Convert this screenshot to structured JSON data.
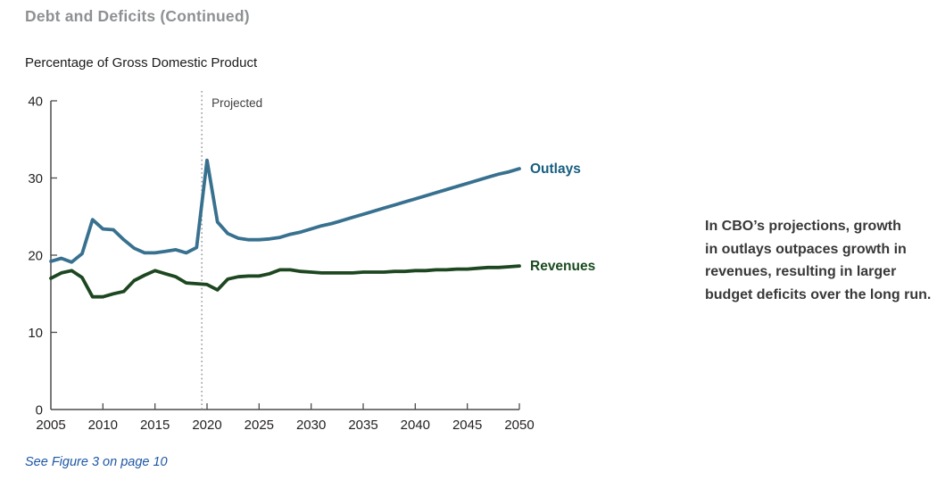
{
  "header": {
    "title": "Debt and Deficits (Continued)"
  },
  "chart": {
    "subtitle": "Percentage of Gross Domestic Product",
    "projected_label": "Projected"
  },
  "chart_data": {
    "type": "line",
    "title": "Debt and Deficits (Continued)",
    "ylabel": "Percentage of Gross Domestic Product",
    "xlabel": "",
    "ylim": [
      0,
      40
    ],
    "xlim": [
      2005,
      2050
    ],
    "y_ticks": [
      0,
      10,
      20,
      30,
      40
    ],
    "x_ticks": [
      2005,
      2010,
      2015,
      2020,
      2025,
      2030,
      2035,
      2040,
      2045,
      2050
    ],
    "grid": false,
    "legend_position": "end-of-line-labels",
    "projected_divider_x": 2019.5,
    "years": [
      2005,
      2006,
      2007,
      2008,
      2009,
      2010,
      2011,
      2012,
      2013,
      2014,
      2015,
      2016,
      2017,
      2018,
      2019,
      2020,
      2021,
      2022,
      2023,
      2024,
      2025,
      2026,
      2027,
      2028,
      2029,
      2030,
      2031,
      2032,
      2033,
      2034,
      2035,
      2036,
      2037,
      2038,
      2039,
      2040,
      2041,
      2042,
      2043,
      2044,
      2045,
      2046,
      2047,
      2048,
      2049,
      2050
    ],
    "series": [
      {
        "name": "Outlays",
        "color": "#38718F",
        "label_color": "#165E80",
        "values": [
          19.2,
          19.6,
          19.1,
          20.2,
          24.6,
          23.4,
          23.3,
          22.0,
          20.9,
          20.3,
          20.3,
          20.5,
          20.7,
          20.3,
          21.0,
          32.3,
          24.3,
          22.8,
          22.2,
          22.0,
          22.0,
          22.1,
          22.3,
          22.7,
          23.0,
          23.4,
          23.8,
          24.1,
          24.5,
          24.9,
          25.3,
          25.7,
          26.1,
          26.5,
          26.9,
          27.3,
          27.7,
          28.1,
          28.5,
          28.9,
          29.3,
          29.7,
          30.1,
          30.5,
          30.8,
          31.2
        ]
      },
      {
        "name": "Revenues",
        "color": "#1D4720",
        "label_color": "#1A4A1F",
        "values": [
          17.0,
          17.7,
          18.0,
          17.1,
          14.6,
          14.6,
          15.0,
          15.3,
          16.7,
          17.4,
          18.0,
          17.6,
          17.2,
          16.4,
          16.3,
          16.2,
          15.5,
          16.9,
          17.2,
          17.3,
          17.3,
          17.6,
          18.1,
          18.1,
          17.9,
          17.8,
          17.7,
          17.7,
          17.7,
          17.7,
          17.8,
          17.8,
          17.8,
          17.9,
          17.9,
          18.0,
          18.0,
          18.1,
          18.1,
          18.2,
          18.2,
          18.3,
          18.4,
          18.4,
          18.5,
          18.6
        ]
      }
    ]
  },
  "annotation": {
    "lines": [
      "In CBO’s projections, growth",
      "in outlays outpaces growth in",
      "revenues, resulting in larger",
      "budget deficits over the long run."
    ]
  },
  "footer": {
    "note": "See Figure 3 on page 10"
  }
}
